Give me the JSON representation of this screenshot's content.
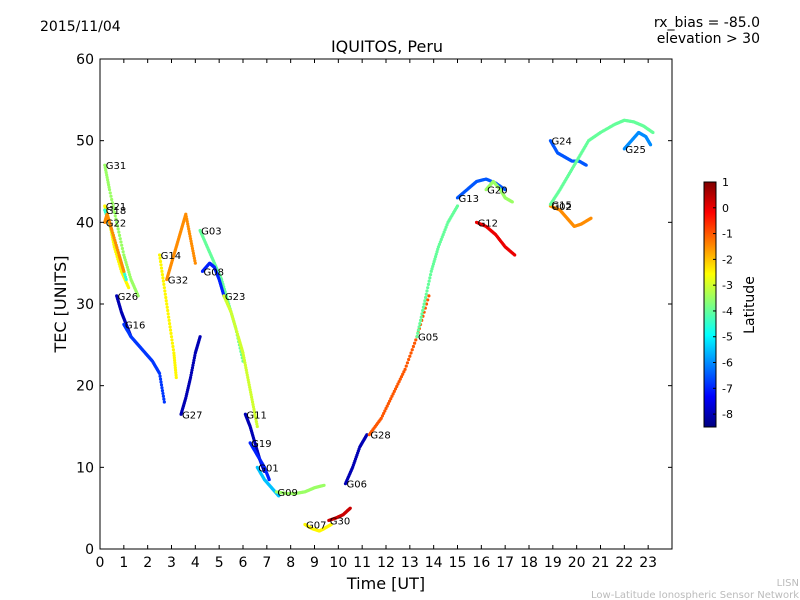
{
  "header": {
    "date": "2015/11/04",
    "rx_bias": "rx_bias = -85.0",
    "elevation": "elevation > 30"
  },
  "footer": {
    "credit_short": "LISN",
    "credit_long": "Low-Latitude Ionospheric Sensor Network"
  },
  "chart_data": {
    "type": "scatter",
    "title": "IQUITOS, Peru",
    "xlabel": "Time [UT]",
    "ylabel": "TEC [UNITS]",
    "xlim": [
      0,
      24
    ],
    "ylim": [
      0,
      60
    ],
    "xticks": [
      0,
      1,
      2,
      3,
      4,
      5,
      6,
      7,
      8,
      9,
      10,
      11,
      12,
      13,
      14,
      15,
      16,
      17,
      18,
      19,
      20,
      21,
      22,
      23
    ],
    "yticks": [
      0,
      10,
      20,
      30,
      40,
      50,
      60
    ],
    "grid": false,
    "colorbar": {
      "label": "Latitude",
      "range": [
        -8.5,
        1
      ],
      "ticks": [
        1,
        0,
        -1,
        -2,
        -3,
        -4,
        -5,
        -6,
        -7,
        -8
      ],
      "colormap": [
        "#00007f",
        "#0000ff",
        "#007fff",
        "#00ffff",
        "#7fff7f",
        "#ffff00",
        "#ff7f00",
        "#ff0000",
        "#7f0000"
      ]
    },
    "series": [
      {
        "name": "G31",
        "points": [
          [
            0.2,
            47
          ],
          [
            0.4,
            44
          ],
          [
            0.7,
            40
          ],
          [
            1.0,
            36
          ],
          [
            1.3,
            33
          ],
          [
            1.6,
            31
          ]
        ],
        "lat": -3.5
      },
      {
        "name": "G21",
        "points": [
          [
            0.2,
            42
          ],
          [
            0.4,
            40
          ],
          [
            0.6,
            37
          ],
          [
            0.9,
            34
          ],
          [
            1.2,
            32
          ]
        ],
        "lat": -2.5
      },
      {
        "name": "G18",
        "points": [
          [
            0.2,
            41.5
          ],
          [
            0.5,
            39
          ],
          [
            0.8,
            36
          ],
          [
            1.1,
            33
          ]
        ],
        "lat": -4.5
      },
      {
        "name": "G22",
        "points": [
          [
            0.2,
            40
          ],
          [
            0.3,
            41
          ],
          [
            0.5,
            39
          ],
          [
            0.8,
            36
          ],
          [
            1.0,
            34
          ]
        ],
        "lat": -1.5
      },
      {
        "name": "G26",
        "points": [
          [
            0.7,
            31
          ],
          [
            0.9,
            29
          ],
          [
            1.1,
            27.5
          ],
          [
            1.3,
            26
          ]
        ],
        "lat": -8.0
      },
      {
        "name": "G16",
        "points": [
          [
            1.0,
            27.5
          ],
          [
            1.3,
            26
          ],
          [
            1.6,
            25
          ],
          [
            1.9,
            24
          ],
          [
            2.2,
            23
          ],
          [
            2.5,
            21.5
          ],
          [
            2.7,
            18
          ]
        ],
        "lat": -6.8
      },
      {
        "name": "G14",
        "points": [
          [
            2.5,
            36
          ],
          [
            2.7,
            32
          ],
          [
            2.9,
            28
          ],
          [
            3.1,
            24
          ],
          [
            3.2,
            21
          ]
        ],
        "lat": -2.5
      },
      {
        "name": "G32",
        "points": [
          [
            2.8,
            33
          ],
          [
            3.0,
            35
          ],
          [
            3.2,
            37
          ],
          [
            3.4,
            39
          ],
          [
            3.6,
            41
          ],
          [
            3.8,
            38
          ],
          [
            4.0,
            35
          ]
        ],
        "lat": -1.5
      },
      {
        "name": "G27",
        "points": [
          [
            3.4,
            16.5
          ],
          [
            3.6,
            18.5
          ],
          [
            3.8,
            21
          ],
          [
            4.0,
            24
          ],
          [
            4.2,
            26
          ]
        ],
        "lat": -8.0
      },
      {
        "name": "G03",
        "points": [
          [
            4.2,
            39
          ],
          [
            4.5,
            37
          ],
          [
            4.8,
            35
          ],
          [
            5.1,
            33
          ],
          [
            5.4,
            30
          ],
          [
            5.7,
            27
          ],
          [
            6.0,
            23
          ]
        ],
        "lat": -4.0
      },
      {
        "name": "G08",
        "points": [
          [
            4.3,
            34
          ],
          [
            4.6,
            35
          ],
          [
            4.8,
            34.5
          ],
          [
            5.0,
            33
          ],
          [
            5.2,
            31
          ]
        ],
        "lat": -7.0
      },
      {
        "name": "G23",
        "points": [
          [
            5.2,
            31
          ],
          [
            5.5,
            29
          ],
          [
            5.8,
            26
          ],
          [
            6.0,
            24
          ],
          [
            6.2,
            21
          ],
          [
            6.4,
            18
          ],
          [
            6.6,
            15
          ]
        ],
        "lat": -3.0
      },
      {
        "name": "G11",
        "points": [
          [
            6.1,
            16.5
          ],
          [
            6.3,
            15
          ],
          [
            6.5,
            13
          ],
          [
            6.7,
            11
          ],
          [
            6.9,
            9.5
          ]
        ],
        "lat": -8.0
      },
      {
        "name": "G19",
        "points": [
          [
            6.3,
            13
          ],
          [
            6.6,
            11.5
          ],
          [
            6.9,
            10
          ],
          [
            7.1,
            8.5
          ]
        ],
        "lat": -7.0
      },
      {
        "name": "G01",
        "points": [
          [
            6.6,
            10
          ],
          [
            6.9,
            8.5
          ],
          [
            7.2,
            7.5
          ],
          [
            7.5,
            6.5
          ]
        ],
        "lat": -5.5
      },
      {
        "name": "G09",
        "points": [
          [
            7.4,
            7
          ],
          [
            7.8,
            6.8
          ],
          [
            8.2,
            6.8
          ],
          [
            8.6,
            7
          ],
          [
            9.0,
            7.5
          ],
          [
            9.4,
            7.8
          ]
        ],
        "lat": -3.5
      },
      {
        "name": "G07",
        "points": [
          [
            8.6,
            3
          ],
          [
            8.9,
            2.5
          ],
          [
            9.2,
            2.2
          ],
          [
            9.4,
            2.5
          ],
          [
            9.7,
            3
          ]
        ],
        "lat": -2.5
      },
      {
        "name": "G30",
        "points": [
          [
            9.6,
            3.5
          ],
          [
            9.9,
            3.8
          ],
          [
            10.2,
            4.2
          ],
          [
            10.5,
            5
          ]
        ],
        "lat": 0.3
      },
      {
        "name": "G06",
        "points": [
          [
            10.3,
            8
          ],
          [
            10.6,
            10
          ],
          [
            10.9,
            12.5
          ],
          [
            11.2,
            14
          ]
        ],
        "lat": -8.0
      },
      {
        "name": "G28",
        "points": [
          [
            11.3,
            14
          ],
          [
            11.8,
            16
          ],
          [
            12.3,
            19
          ],
          [
            12.8,
            22
          ],
          [
            13.3,
            26
          ],
          [
            13.8,
            31
          ]
        ],
        "lat": -1.0
      },
      {
        "name": "G05",
        "points": [
          [
            13.3,
            26
          ],
          [
            13.6,
            30
          ],
          [
            13.9,
            34
          ],
          [
            14.2,
            37
          ],
          [
            14.6,
            40
          ],
          [
            15.0,
            42
          ]
        ],
        "lat": -4.0
      },
      {
        "name": "G13",
        "points": [
          [
            15.0,
            43
          ],
          [
            15.4,
            44
          ],
          [
            15.8,
            45
          ],
          [
            16.2,
            45.3
          ],
          [
            16.6,
            44.8
          ],
          [
            17.0,
            44
          ]
        ],
        "lat": -6.5
      },
      {
        "name": "G20",
        "points": [
          [
            16.2,
            44
          ],
          [
            16.5,
            45
          ],
          [
            16.8,
            44
          ],
          [
            17.0,
            43
          ],
          [
            17.3,
            42.5
          ]
        ],
        "lat": -3.5
      },
      {
        "name": "G12",
        "points": [
          [
            15.8,
            40
          ],
          [
            16.2,
            39.5
          ],
          [
            16.6,
            38.5
          ],
          [
            17.0,
            37
          ],
          [
            17.4,
            36
          ]
        ],
        "lat": 0.0
      },
      {
        "name": "G24",
        "points": [
          [
            18.9,
            50
          ],
          [
            19.2,
            48.5
          ],
          [
            19.5,
            48
          ],
          [
            19.8,
            47.5
          ],
          [
            20.1,
            47.5
          ],
          [
            20.4,
            47
          ]
        ],
        "lat": -6.5
      },
      {
        "name": "G02",
        "points": [
          [
            18.9,
            42
          ],
          [
            19.3,
            41.5
          ],
          [
            19.6,
            40.5
          ],
          [
            19.9,
            39.5
          ],
          [
            20.2,
            39.8
          ],
          [
            20.6,
            40.5
          ]
        ],
        "lat": -1.5
      },
      {
        "name": "G15",
        "points": [
          [
            18.9,
            42.2
          ],
          [
            19.3,
            44
          ],
          [
            19.7,
            46
          ],
          [
            20.1,
            48
          ],
          [
            20.5,
            50
          ],
          [
            21.0,
            51
          ],
          [
            21.6,
            52
          ],
          [
            22.0,
            52.5
          ],
          [
            22.4,
            52.3
          ],
          [
            22.8,
            51.8
          ],
          [
            23.2,
            51
          ]
        ],
        "lat": -4.0
      },
      {
        "name": "G25",
        "points": [
          [
            22.0,
            49
          ],
          [
            22.3,
            50
          ],
          [
            22.6,
            51
          ],
          [
            22.9,
            50.5
          ],
          [
            23.1,
            49.5
          ]
        ],
        "lat": -6.0
      }
    ]
  }
}
